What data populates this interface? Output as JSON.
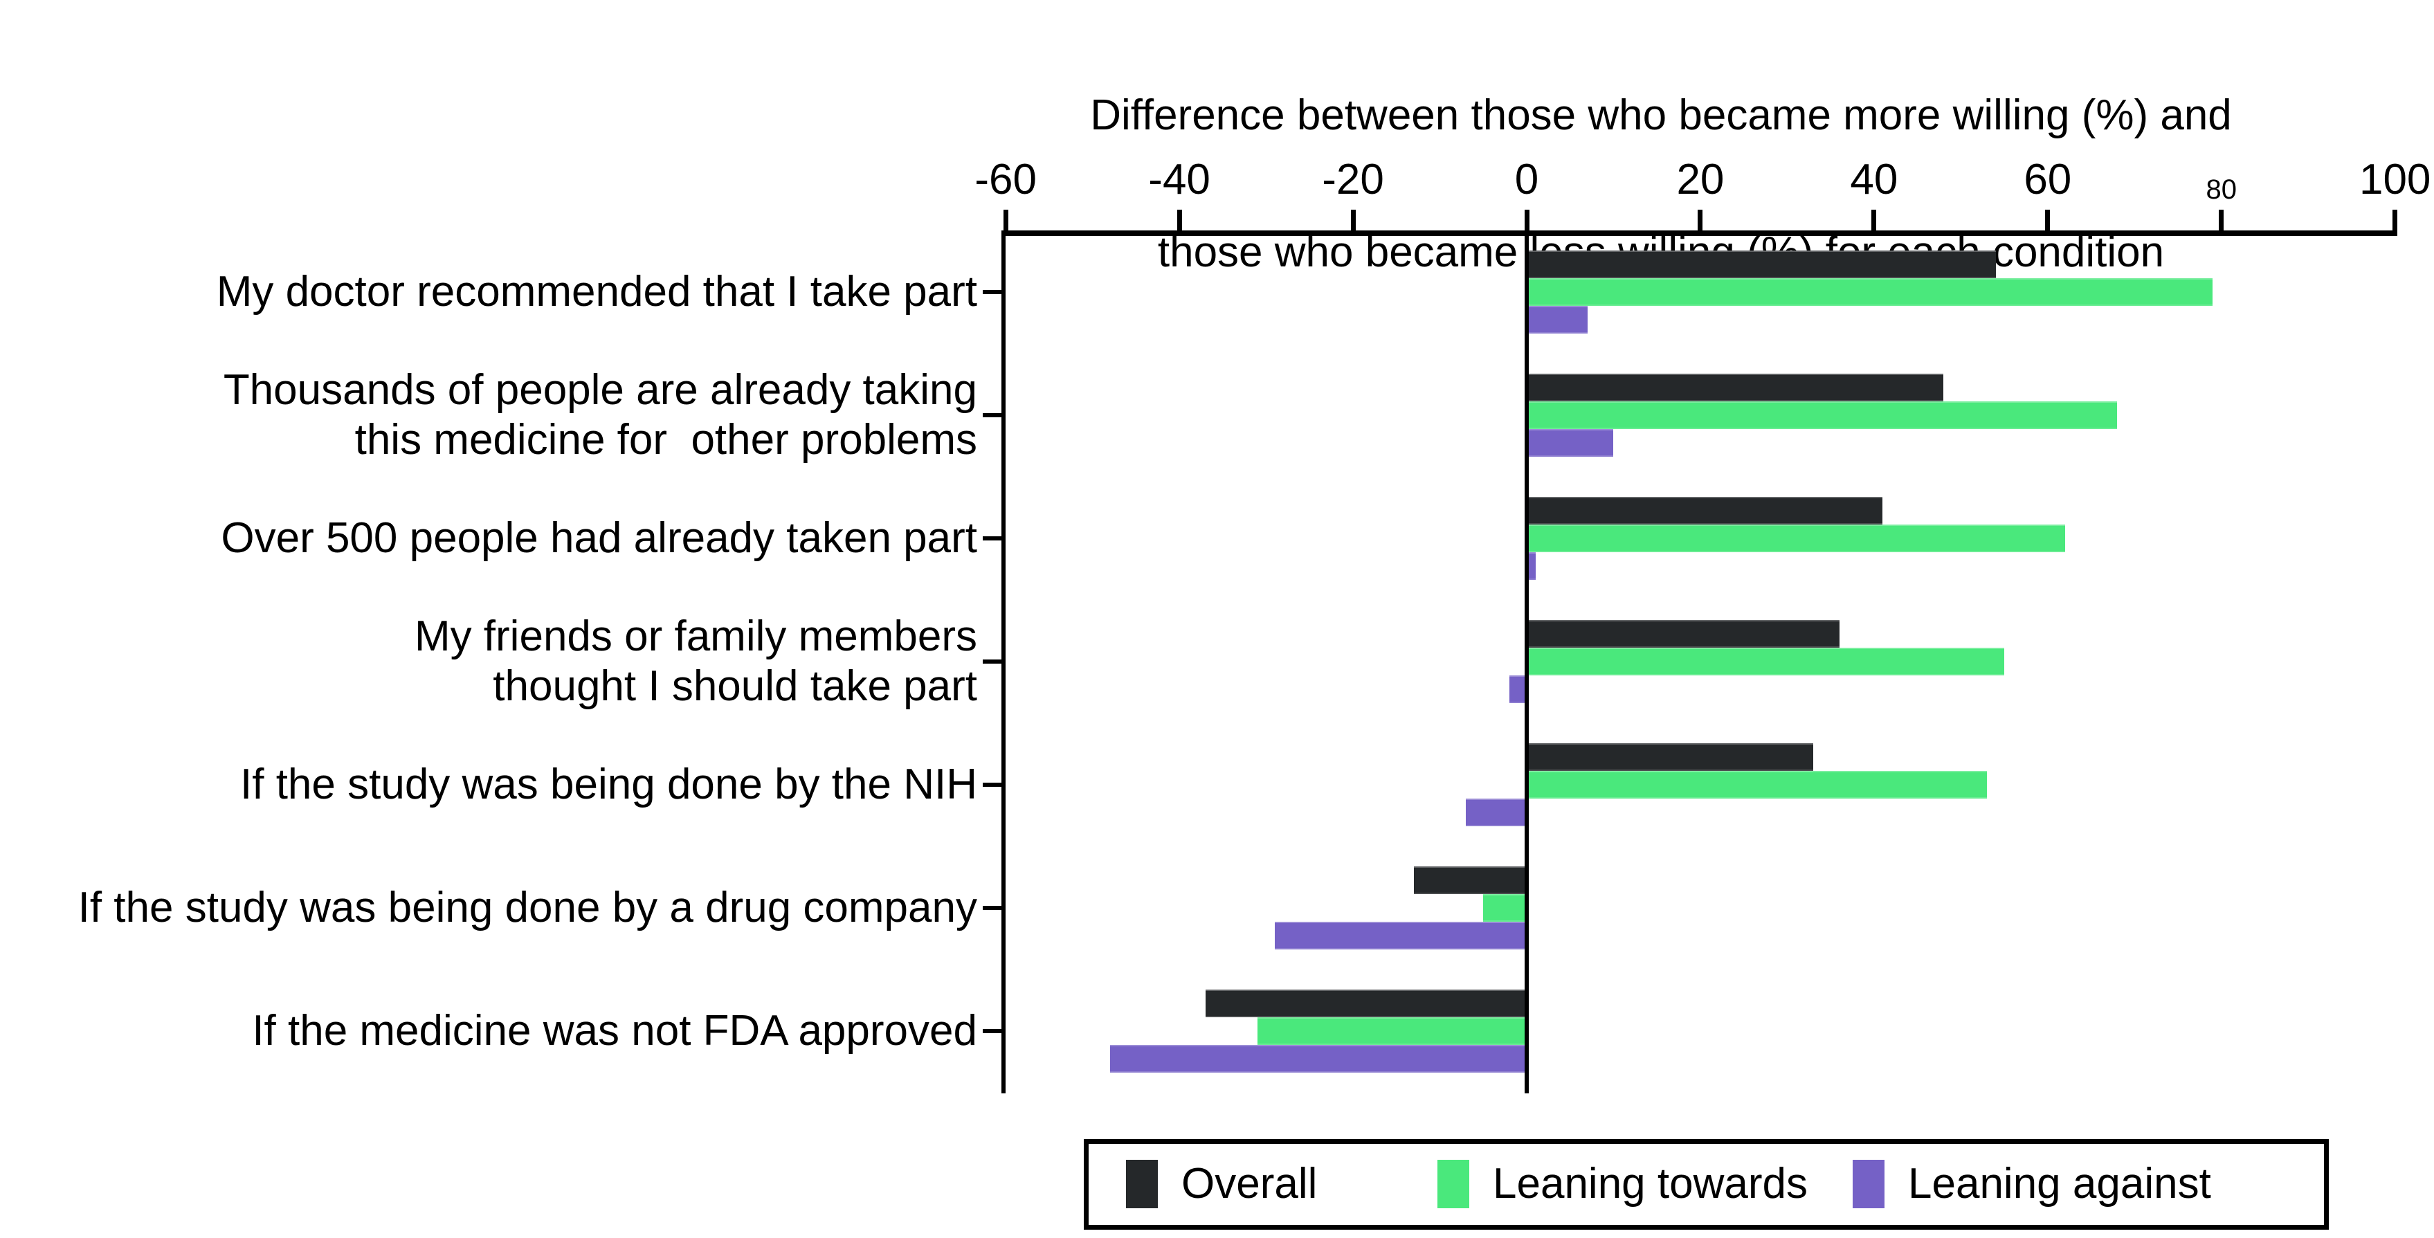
{
  "chart_data": {
    "type": "bar",
    "orientation": "horizontal",
    "title_lines": [
      "Difference between those who became more willing (%) and",
      "those who became less willing (%) for each condition",
      "Difference between those who became more willing (%) and\nthose who became less willing (%) for each condition"
    ],
    "categories": [
      {
        "lines": [
          "My doctor recommended that I take part"
        ]
      },
      {
        "lines": [
          "Thousands of people are already taking",
          "this medicine for  other problems"
        ]
      },
      {
        "lines": [
          "Over 500 people had already taken part"
        ]
      },
      {
        "lines": [
          "My friends or family members",
          "thought I should take part"
        ]
      },
      {
        "lines": [
          "If the study was being done by the NIH"
        ]
      },
      {
        "lines": [
          "If the study was being done by a drug company"
        ]
      },
      {
        "lines": [
          "If the medicine was not FDA approved"
        ]
      }
    ],
    "series": [
      {
        "name": "Overall",
        "color": "#25282a",
        "values": [
          54,
          48,
          41,
          36,
          33,
          -13,
          -37
        ]
      },
      {
        "name": "Leaning towards",
        "color": "#4ae87c",
        "values": [
          79,
          68,
          62,
          55,
          53,
          -5,
          -31
        ]
      },
      {
        "name": "Leaning against",
        "color": "#7561c6",
        "values": [
          7,
          10,
          1,
          -2,
          -7,
          -29,
          -48
        ]
      }
    ],
    "x_axis": {
      "min": -60,
      "max": 100,
      "ticks": [
        -60,
        -40,
        -20,
        0,
        20,
        40,
        60,
        80,
        100
      ],
      "tick_labels": [
        "-60",
        "-40",
        "-20",
        "0",
        "20",
        "40",
        "60",
        "80",
        "100"
      ],
      "small_label": "80",
      "position": "top"
    },
    "legend": [
      "Overall",
      "Leaning towards",
      "Leaning against"
    ],
    "legend_position": "bottom",
    "grid": false,
    "zero_line": true
  }
}
